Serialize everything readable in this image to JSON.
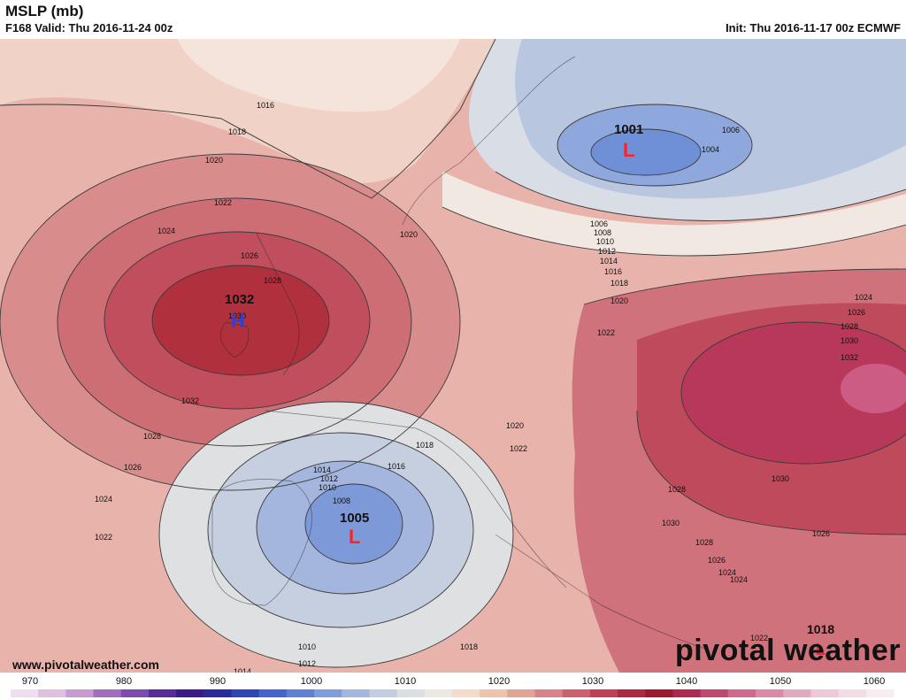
{
  "header": {
    "title": "MSLP (mb)",
    "valid": "F168 Valid: Thu 2016-11-24 00z",
    "init": "Init: Thu 2016-11-17 00z ECMWF"
  },
  "footer": {
    "url": "www.pivotalweather.com",
    "brand": "pivotal weather"
  },
  "colorbar": {
    "labels": [
      "970",
      "980",
      "990",
      "1000",
      "1010",
      "1020",
      "1030",
      "1040",
      "1050",
      "1060"
    ],
    "colors": [
      "#f1ddf1",
      "#e0c0e0",
      "#c89ad2",
      "#a070c0",
      "#7d4ab0",
      "#5a2c98",
      "#3c1a8a",
      "#2a2a9a",
      "#2d47b8",
      "#4466cc",
      "#5f80d4",
      "#7f9cdc",
      "#a3b6e0",
      "#c2cde2",
      "#dcdfe2",
      "#ece7e0",
      "#f3dccb",
      "#eec2ae",
      "#e2a296",
      "#d8828a",
      "#cc6070",
      "#c04058",
      "#b02840",
      "#a01830",
      "#b02850",
      "#c04870",
      "#d06890",
      "#dc88a8",
      "#e6a8c0",
      "#eec8d8",
      "#f4dce6",
      "#f8ecf2"
    ]
  },
  "map": {
    "pressure_centers": [
      {
        "type": "H",
        "value": "1032",
        "color": "#2244dd"
      },
      {
        "type": "L",
        "value": "1001",
        "color": "#ff2222"
      },
      {
        "type": "L",
        "value": "1005",
        "color": "#ff2222"
      },
      {
        "type": "L",
        "value": "1018",
        "color": "#ff2222"
      }
    ],
    "isobar_labels": [
      "1016",
      "1018",
      "1020",
      "1022",
      "1024",
      "1026",
      "1028",
      "1030",
      "1032",
      "1006",
      "1004",
      "1006",
      "1008",
      "1010",
      "1012",
      "1014",
      "1016",
      "1018",
      "1020",
      "1022",
      "1024",
      "1026",
      "1028",
      "1030",
      "1032",
      "1030",
      "1028",
      "1026",
      "1024",
      "1022",
      "1020",
      "1018",
      "1016",
      "1014",
      "1012",
      "1010",
      "1008",
      "1020",
      "1022",
      "1024",
      "1026",
      "1028",
      "1030",
      "1028",
      "1026",
      "1024",
      "1022",
      "1010",
      "1012",
      "1014",
      "1018"
    ]
  }
}
